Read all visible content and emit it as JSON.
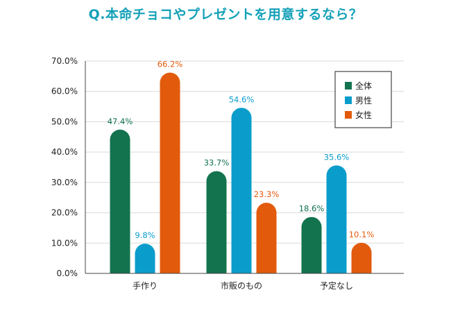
{
  "chart_data": {
    "type": "bar",
    "title": "Q.本命チョコやプレゼントを用意するなら？",
    "title_color": "#13A0B8",
    "categories": [
      "手作り",
      "市販のもの",
      "予定なし"
    ],
    "series": [
      {
        "name": "全体",
        "color": "#13734F",
        "values": [
          47.4,
          33.7,
          18.6
        ],
        "labels": [
          "47.4%",
          "33.7%",
          "18.6%"
        ]
      },
      {
        "name": "男性",
        "color": "#0A9DCC",
        "values": [
          9.8,
          54.6,
          35.6
        ],
        "labels": [
          "9.8%",
          "54.6%",
          "35.6%"
        ]
      },
      {
        "name": "女性",
        "color": "#E25B0D",
        "values": [
          66.2,
          23.3,
          10.1
        ],
        "labels": [
          "66.2%",
          "23.3%",
          "10.1%"
        ]
      }
    ],
    "y_ticks": [
      "0.0%",
      "10.0%",
      "20.0%",
      "30.0%",
      "40.0%",
      "50.0%",
      "60.0%",
      "70.0%"
    ],
    "ylim": [
      0,
      70
    ],
    "grid": true,
    "legend_position": "top-right",
    "xlabel": "",
    "ylabel": ""
  }
}
